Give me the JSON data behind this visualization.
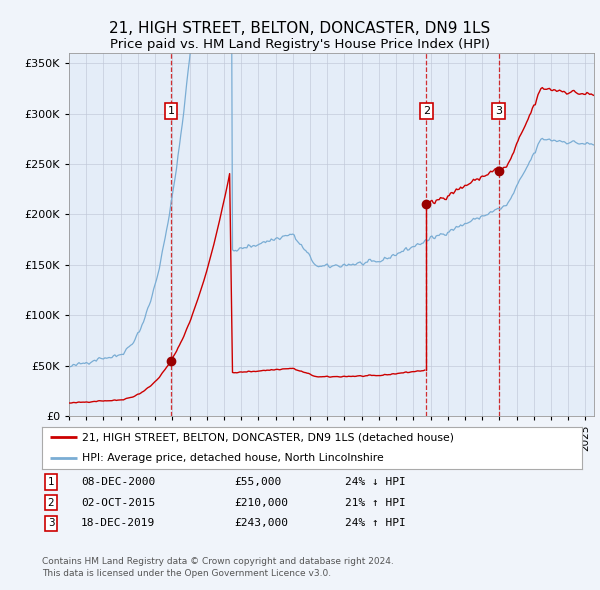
{
  "title": "21, HIGH STREET, BELTON, DONCASTER, DN9 1LS",
  "subtitle": "Price paid vs. HM Land Registry's House Price Index (HPI)",
  "title_fontsize": 11,
  "subtitle_fontsize": 9.5,
  "background_color": "#f0f4fa",
  "plot_bg_color": "#e4edf8",
  "ylim": [
    0,
    360000
  ],
  "yticks": [
    0,
    50000,
    100000,
    150000,
    200000,
    250000,
    300000,
    350000
  ],
  "ytick_labels": [
    "£0",
    "£50K",
    "£100K",
    "£150K",
    "£200K",
    "£250K",
    "£300K",
    "£350K"
  ],
  "hpi_color": "#7aadd4",
  "price_color": "#cc0000",
  "sale_marker_color": "#990000",
  "legend_label_property": "21, HIGH STREET, BELTON, DONCASTER, DN9 1LS (detached house)",
  "legend_label_hpi": "HPI: Average price, detached house, North Lincolnshire",
  "sale_dates": [
    "2000-12-08",
    "2015-10-02",
    "2019-12-18"
  ],
  "sale_prices": [
    55000,
    210000,
    243000
  ],
  "sale_labels": [
    "1",
    "2",
    "3"
  ],
  "table_entries": [
    {
      "label": "1",
      "date": "08-DEC-2000",
      "price": "£55,000",
      "hpi": "24% ↓ HPI"
    },
    {
      "label": "2",
      "date": "02-OCT-2015",
      "price": "£210,000",
      "hpi": "21% ↑ HPI"
    },
    {
      "label": "3",
      "date": "18-DEC-2019",
      "price": "£243,000",
      "hpi": "24% ↑ HPI"
    }
  ],
  "footer_text": "Contains HM Land Registry data © Crown copyright and database right 2024.\nThis data is licensed under the Open Government Licence v3.0.",
  "vline_color": "#cc0000",
  "grid_color": "#c0c8d8"
}
